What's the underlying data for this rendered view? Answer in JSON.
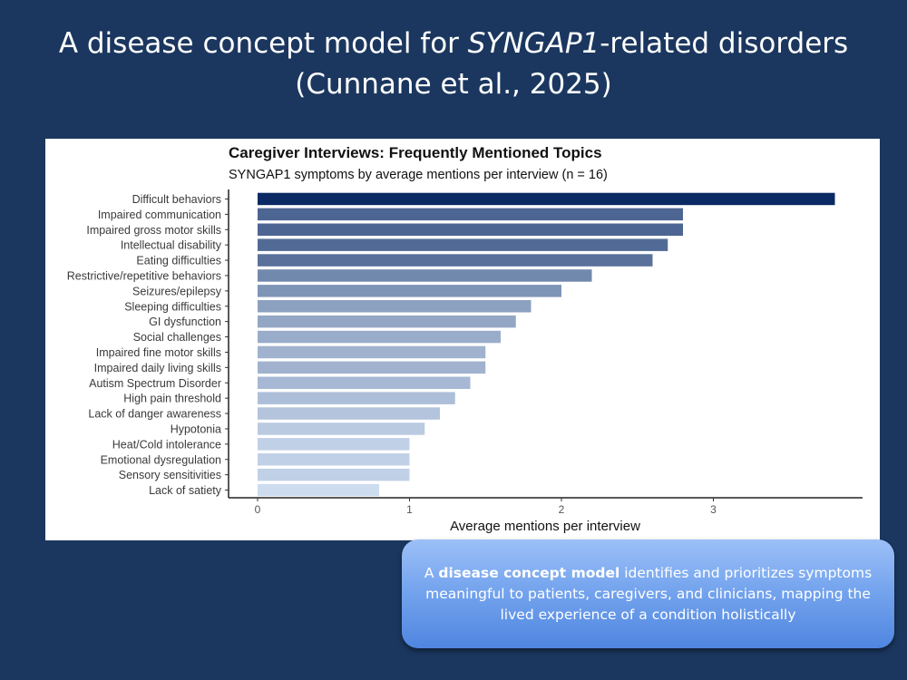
{
  "slide": {
    "title_line1_pre": "A disease concept model for ",
    "title_line1_italic": "SYNGAP1",
    "title_line1_post": "-related disorders",
    "title_line2": "(Cunnane et al., 2025)"
  },
  "callout": {
    "prefix": "A ",
    "bold": "disease concept model",
    "suffix": " identifies and prioritizes symptoms meaningful to patients, caregivers, and clinicians, mapping the lived experience of a condition holistically"
  },
  "colors": {
    "background": "#1b375f",
    "bar_darkest": "#0b2a63",
    "bar_lightest": "#cddcef"
  },
  "chart_data": {
    "type": "bar",
    "orientation": "horizontal",
    "title": "Caregiver Interviews: Frequently Mentioned Topics",
    "subtitle": "SYNGAP1 symptoms by average mentions per interview (n = 16)",
    "xlabel": "Average mentions per interview",
    "ylabel": "",
    "xlim": [
      0,
      4
    ],
    "xticks": [
      0,
      1,
      2,
      3
    ],
    "grid": false,
    "legend": "none",
    "categories": [
      "Difficult behaviors",
      "Impaired communication",
      "Impaired gross motor skills",
      "Intellectual disability",
      "Eating difficulties",
      "Restrictive/repetitive behaviors",
      "Seizures/epilepsy",
      "Sleeping difficulties",
      "GI dysfunction",
      "Social challenges",
      "Impaired fine motor skills",
      "Impaired daily living skills",
      "Autism Spectrum Disorder",
      "High pain threshold",
      "Lack of danger awareness",
      "Hypotonia",
      "Heat/Cold intolerance",
      "Emotional dysregulation",
      "Sensory sensitivities",
      "Lack of satiety"
    ],
    "values": [
      3.8,
      2.8,
      2.8,
      2.7,
      2.6,
      2.2,
      2.0,
      1.8,
      1.7,
      1.6,
      1.5,
      1.5,
      1.4,
      1.3,
      1.2,
      1.1,
      1.0,
      1.0,
      1.0,
      0.8
    ]
  }
}
